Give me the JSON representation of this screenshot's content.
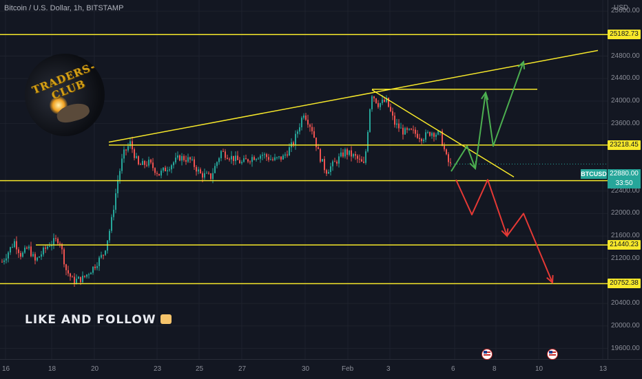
{
  "header": {
    "title": "Bitcoin / U.S. Dollar, 1h, BITSTAMP"
  },
  "axis": {
    "currency": "USD",
    "price_ticks": [
      "25600.00",
      "24800.00",
      "24400.00",
      "24000.00",
      "23600.00",
      "22400.00",
      "22000.00",
      "21600.00",
      "21200.00",
      "20400.00",
      "20000.00",
      "19600.00"
    ],
    "time_ticks": [
      "16",
      "18",
      "20",
      "23",
      "25",
      "27",
      "30",
      "Feb",
      "3",
      "6",
      "8",
      "10",
      "13"
    ]
  },
  "levels": [
    {
      "label": "25182.73",
      "value": 25182.73
    },
    {
      "label": "23218.45",
      "value": 23218.45
    },
    {
      "label": "22585.12",
      "value": 22585.12
    },
    {
      "label": "21440.23",
      "value": 21440.23
    },
    {
      "label": "20752.38",
      "value": 20752.38
    }
  ],
  "current": {
    "symbol": "BTCUSD",
    "price": "22880.00",
    "countdown": "33:50",
    "value": 22880
  },
  "logo": {
    "text": "TRADERS-CLUB"
  },
  "cta": {
    "text": "LIKE AND FOLLOW"
  },
  "icons": {
    "flag": "us-flag-icon",
    "thumb": "thumbs-up-icon"
  },
  "colors": {
    "background": "#131722",
    "level": "#f7e82a",
    "up": "#26a69a",
    "down": "#ef5350",
    "bull_arrow": "#4caf50",
    "bear_arrow": "#e53935"
  },
  "chart_data": {
    "type": "candlestick",
    "title": "Bitcoin / U.S. Dollar, 1h, BITSTAMP",
    "xlabel": "",
    "ylabel": "USD",
    "ylim": [
      19600,
      25800
    ],
    "x_ticks": [
      "16",
      "18",
      "20",
      "23",
      "25",
      "27",
      "30",
      "Feb",
      "3",
      "6",
      "8",
      "10",
      "13"
    ],
    "y_ticks": [
      19600,
      20000,
      20400,
      21200,
      21600,
      22000,
      22400,
      23600,
      24000,
      24400,
      24800,
      25600
    ],
    "horizontal_levels": [
      25182.73,
      23218.45,
      22585.12,
      21440.23,
      20752.38
    ],
    "close_path": [
      [
        0,
        21100
      ],
      [
        10,
        21300
      ],
      [
        20,
        21500
      ],
      [
        30,
        21250
      ],
      [
        40,
        21400
      ],
      [
        50,
        21150
      ],
      [
        60,
        21300
      ],
      [
        70,
        21450
      ],
      [
        85,
        21550
      ],
      [
        95,
        21000
      ],
      [
        105,
        20800
      ],
      [
        120,
        20850
      ],
      [
        135,
        21050
      ],
      [
        150,
        21300
      ],
      [
        160,
        21800
      ],
      [
        170,
        22600
      ],
      [
        178,
        23050
      ],
      [
        188,
        23250
      ],
      [
        200,
        22850
      ],
      [
        215,
        22900
      ],
      [
        230,
        22700
      ],
      [
        245,
        22850
      ],
      [
        260,
        23000
      ],
      [
        275,
        22950
      ],
      [
        290,
        22700
      ],
      [
        305,
        22650
      ],
      [
        320,
        23100
      ],
      [
        335,
        23000
      ],
      [
        350,
        22900
      ],
      [
        365,
        23000
      ],
      [
        380,
        23050
      ],
      [
        395,
        22950
      ],
      [
        410,
        23000
      ],
      [
        425,
        23250
      ],
      [
        440,
        23800
      ],
      [
        452,
        23500
      ],
      [
        462,
        23050
      ],
      [
        472,
        22750
      ],
      [
        485,
        22900
      ],
      [
        500,
        23100
      ],
      [
        515,
        23000
      ],
      [
        528,
        22850
      ],
      [
        538,
        24150
      ],
      [
        548,
        23950
      ],
      [
        560,
        24000
      ],
      [
        572,
        23600
      ],
      [
        585,
        23450
      ],
      [
        598,
        23450
      ],
      [
        612,
        23350
      ],
      [
        625,
        23450
      ],
      [
        638,
        23400
      ],
      [
        648,
        22950
      ],
      [
        655,
        22820
      ]
    ],
    "trendlines": [
      {
        "name": "rising-resistance",
        "from": [
          158,
          23270
        ],
        "to": [
          868,
          24900
        ]
      },
      {
        "name": "descending-line",
        "from": [
          540,
          24200
        ],
        "to": [
          746,
          22650
        ]
      }
    ],
    "projections": {
      "bullish": [
        [
          655,
          22750
        ],
        [
          678,
          23200
        ],
        [
          690,
          22800
        ],
        [
          705,
          24150
        ],
        [
          716,
          23200
        ],
        [
          760,
          24700
        ]
      ],
      "bearish": [
        [
          662,
          22600
        ],
        [
          685,
          21980
        ],
        [
          708,
          22600
        ],
        [
          736,
          21600
        ],
        [
          760,
          22000
        ],
        [
          802,
          20770
        ]
      ]
    }
  }
}
